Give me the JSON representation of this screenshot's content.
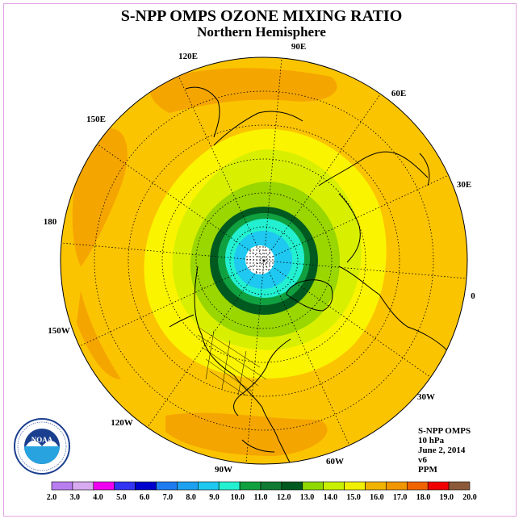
{
  "title": "S-NPP OMPS OZONE MIXING RATIO",
  "subtitle": "Northern Hemisphere",
  "longitude_labels": [
    "90E",
    "60E",
    "30E",
    "0",
    "30W",
    "60W",
    "90W",
    "120W",
    "150W",
    "180",
    "150E",
    "120E"
  ],
  "info": {
    "line1": "S-NPP OMPS",
    "line2": "10 hPa",
    "line3": "June 2, 2014",
    "line4": "v6",
    "line5": "PPM"
  },
  "logo": {
    "center_text": "NOAA",
    "ring_text": "NATIONAL OCEANIC AND ATMOSPHERIC ADMINISTRATION · U.S. DEPARTMENT OF COMMERCE"
  },
  "colorbar": {
    "ticks": [
      "2.0",
      "3.0",
      "4.0",
      "5.0",
      "6.0",
      "7.0",
      "8.0",
      "9.0",
      "10.0",
      "11.0",
      "12.0",
      "13.0",
      "14.0",
      "15.0",
      "16.0",
      "17.0",
      "18.0",
      "19.0",
      "20.0"
    ],
    "colors": [
      "#b87ef0",
      "#d8aaf0",
      "#f000f0",
      "#3333f2",
      "#0000cc",
      "#1e7cf0",
      "#1ea0f0",
      "#1ec8f0",
      "#22f0d0",
      "#10a040",
      "#0e7a32",
      "#005a20",
      "#90d800",
      "#c8f000",
      "#f0f000",
      "#f0b400",
      "#f09600",
      "#f06400",
      "#f00000",
      "#8c5a3a"
    ]
  },
  "ozone_colors": {
    "c16": "#f5a500",
    "c15": "#fbc400",
    "c14": "#fbf400",
    "c13": "#d8f000",
    "c12": "#9ad600",
    "c11": "#0e7a32",
    "c10": "#005a20",
    "c9": "#10a040",
    "c8": "#22f0d0",
    "c7": "#1ec8f0",
    "c6": "#22ddee"
  }
}
